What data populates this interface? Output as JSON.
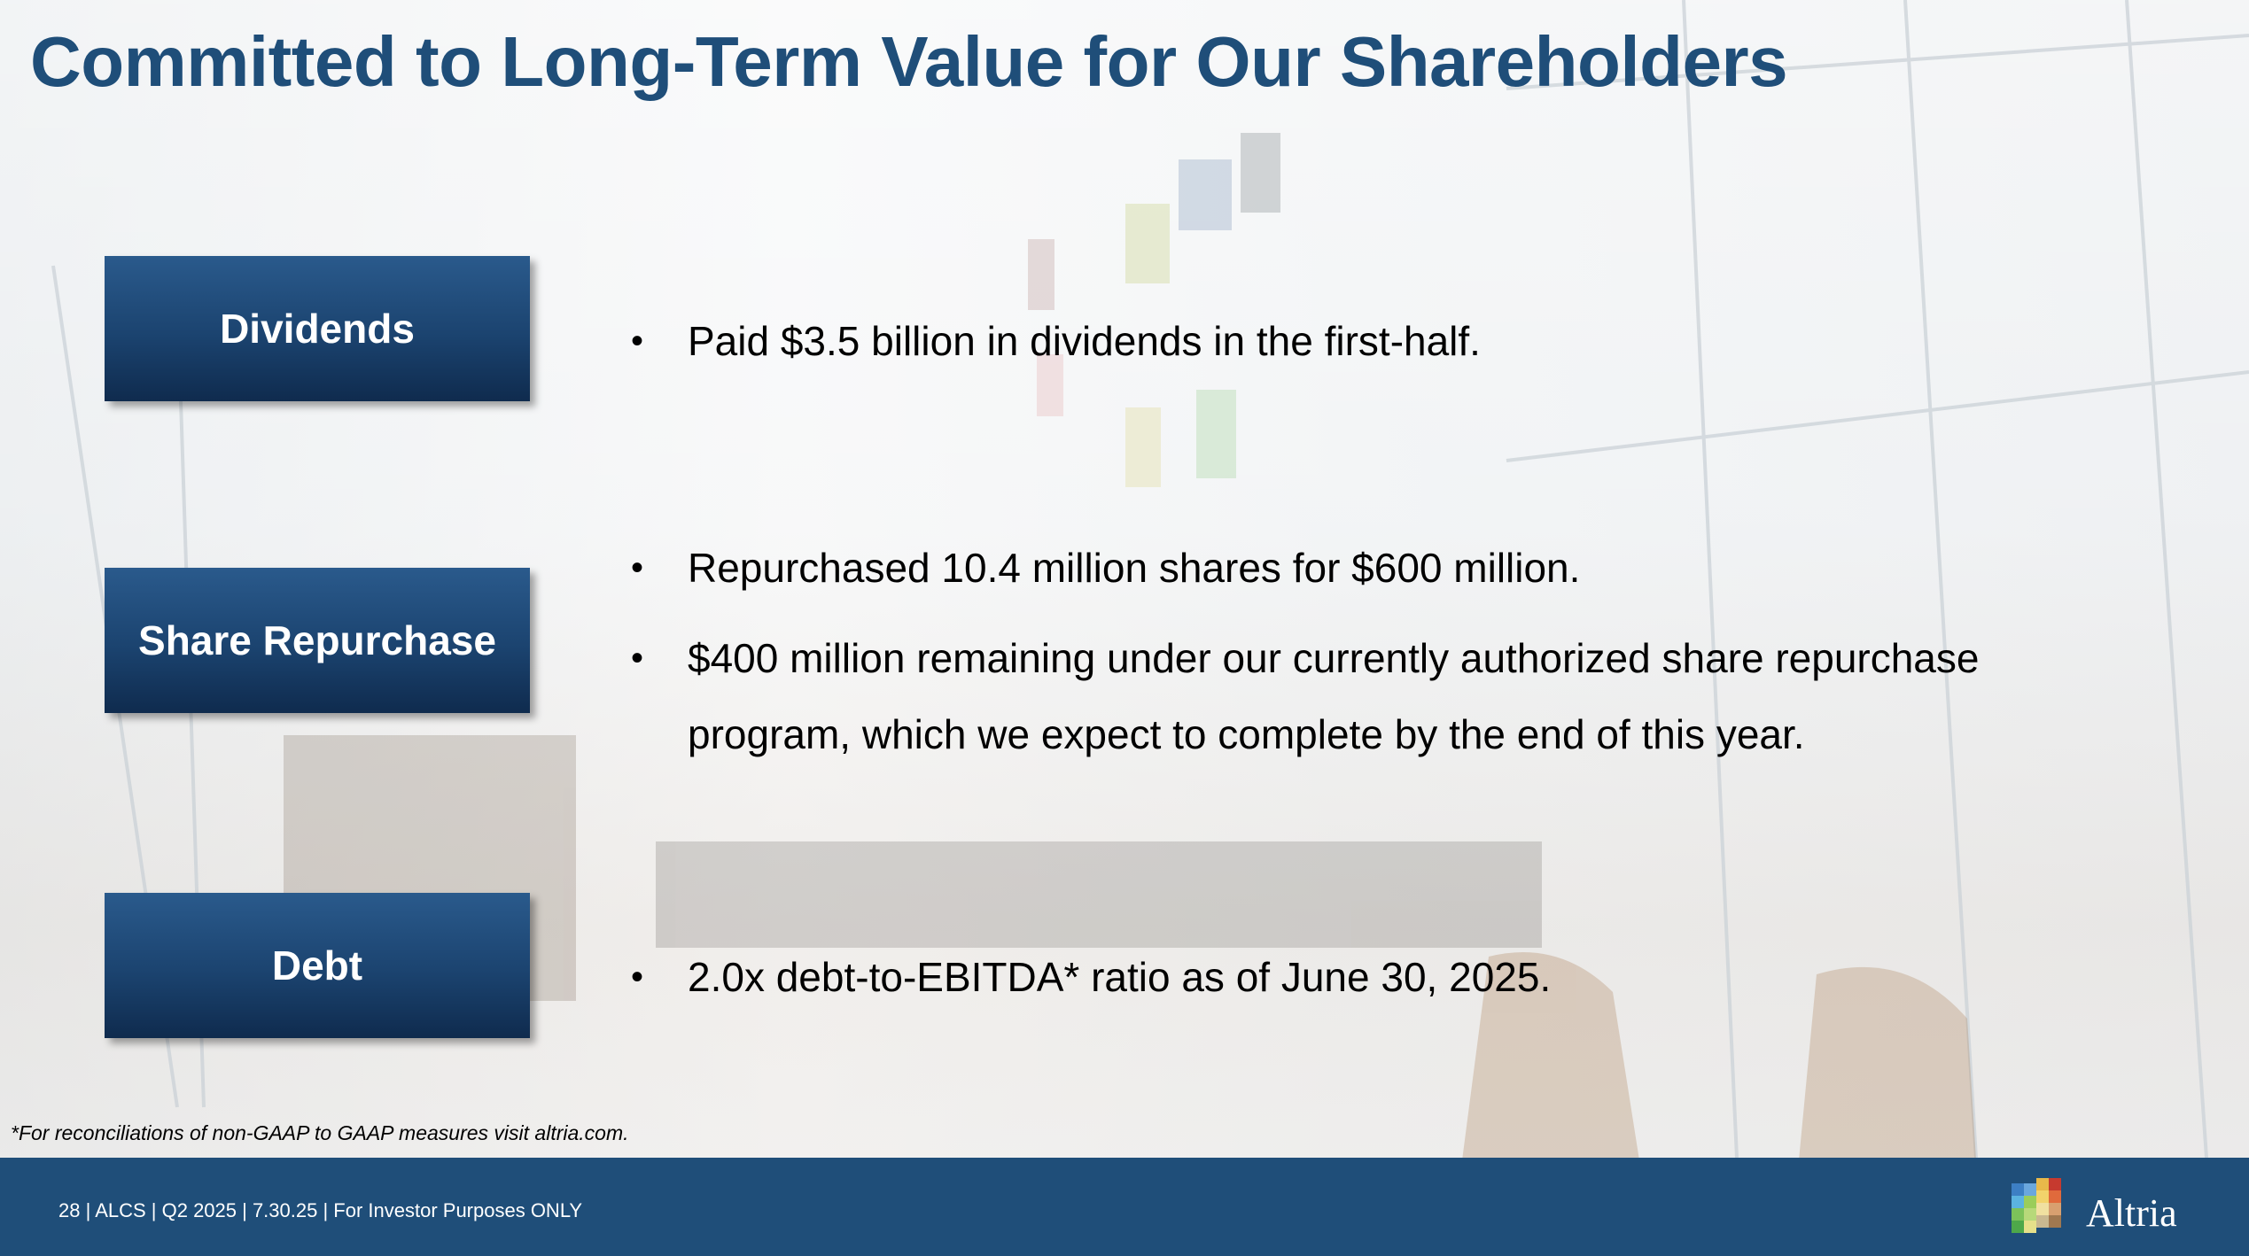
{
  "slide": {
    "title": "Committed to Long-Term Value for Our Shareholders"
  },
  "sections": [
    {
      "label": "Dividends",
      "bullets": [
        "Paid $3.5 billion in dividends in the first-half."
      ]
    },
    {
      "label": "Share Repurchase",
      "bullets": [
        "Repurchased 10.4 million shares for $600 million.",
        "$400 million remaining under our currently authorized share repurchase program, which we expect to complete by the end of this year."
      ]
    },
    {
      "label": "Debt",
      "bullets": [
        "2.0x debt-to-EBITDA* ratio as of June 30, 2025."
      ]
    }
  ],
  "bullet_glyph": "•",
  "footnote": "*For reconciliations of non-GAAP to GAAP measures visit altria.com.",
  "footer": {
    "text": "28 |  ALCS | Q2 2025 | 7.30.25 | For Investor Purposes ONLY",
    "logo_text": "Altria",
    "background_color": "#1f4e79"
  },
  "colors": {
    "title": "#1f4e79",
    "label_box": "#1b436f"
  },
  "icons": [
    "altria-logo-icon"
  ]
}
